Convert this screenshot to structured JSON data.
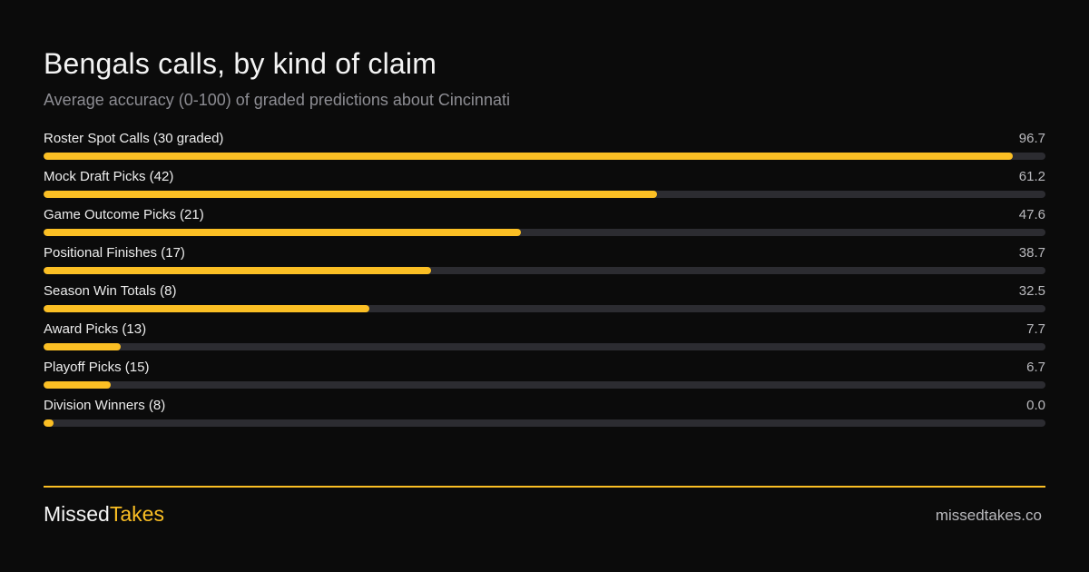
{
  "title": "Bengals calls, by kind of claim",
  "subtitle": "Average accuracy (0-100) of graded predictions about Cincinnati",
  "colors": {
    "accent": "#fbbf24",
    "track": "#2c2c31",
    "background": "#0b0b0b"
  },
  "chart_data": {
    "type": "bar",
    "orientation": "horizontal",
    "title": "Bengals calls, by kind of claim",
    "subtitle": "Average accuracy (0-100) of graded predictions about Cincinnati",
    "xlim": [
      0,
      100
    ],
    "grid": false,
    "categories": [
      "Roster Spot Calls (30 graded)",
      "Mock Draft Picks (42)",
      "Game Outcome Picks (21)",
      "Positional Finishes (17)",
      "Season Win Totals (8)",
      "Award Picks (13)",
      "Playoff Picks (15)",
      "Division Winners (8)"
    ],
    "values": [
      96.7,
      61.2,
      47.6,
      38.7,
      32.5,
      7.7,
      6.7,
      0.0
    ],
    "value_labels": [
      "96.7",
      "61.2",
      "47.6",
      "38.7",
      "32.5",
      "7.7",
      "6.7",
      "0.0"
    ]
  },
  "footer": {
    "brand_part1": "Missed",
    "brand_part2": "Takes",
    "site": "missedtakes.co"
  }
}
